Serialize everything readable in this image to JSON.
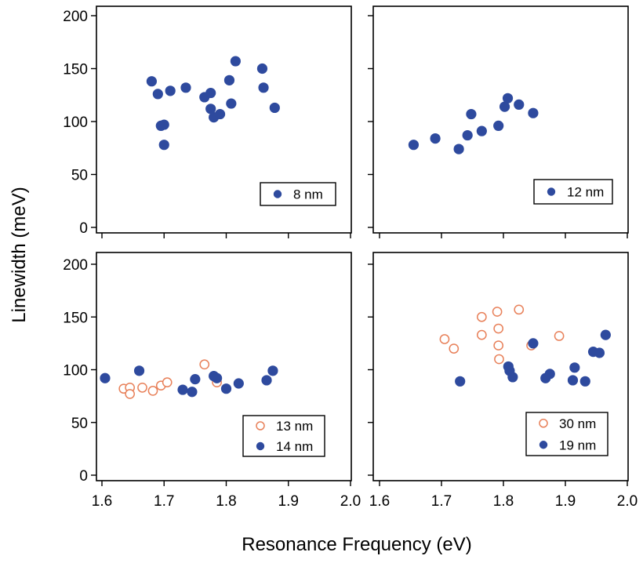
{
  "colors": {
    "filled": "#2E4A9E",
    "open": "#E8815A",
    "axis": "#000000",
    "background": "#ffffff"
  },
  "labels": {
    "ylabel": "Linewidth (meV)",
    "xlabel": "Resonance Frequency (eV)"
  },
  "chart_data": [
    {
      "type": "scatter",
      "panel": "top-left",
      "xlim": [
        1.6,
        2.0
      ],
      "ylim": [
        0,
        200
      ],
      "xticks": [],
      "yticks": [
        "0",
        "50",
        "100",
        "150",
        "200"
      ],
      "legend_position": "bottom-right",
      "series": [
        {
          "name": "8 nm",
          "marker": "filled",
          "x": [
            1.68,
            1.69,
            1.695,
            1.7,
            1.7,
            1.71,
            1.735,
            1.765,
            1.775,
            1.775,
            1.78,
            1.79,
            1.805,
            1.808,
            1.815,
            1.858,
            1.86,
            1.878
          ],
          "y": [
            138,
            126,
            96,
            97,
            78,
            129,
            132,
            123,
            127,
            112,
            104,
            107,
            139,
            117,
            157,
            150,
            132,
            113
          ]
        }
      ]
    },
    {
      "type": "scatter",
      "panel": "top-right",
      "xlim": [
        1.6,
        2.0
      ],
      "ylim": [
        0,
        200
      ],
      "xticks": [],
      "yticks": [],
      "legend_position": "bottom-right",
      "series": [
        {
          "name": "12 nm",
          "marker": "filled",
          "x": [
            1.655,
            1.69,
            1.728,
            1.742,
            1.748,
            1.765,
            1.792,
            1.802,
            1.807,
            1.825,
            1.848
          ],
          "y": [
            78,
            84,
            74,
            87,
            107,
            91,
            96,
            114,
            122,
            116,
            108
          ]
        }
      ]
    },
    {
      "type": "scatter",
      "panel": "bottom-left",
      "xlim": [
        1.6,
        2.0
      ],
      "ylim": [
        0,
        200
      ],
      "xticks": [
        "1.6",
        "1.7",
        "1.8",
        "1.9",
        "2.0"
      ],
      "yticks": [
        "0",
        "50",
        "100",
        "150",
        "200"
      ],
      "legend_position": "bottom-right",
      "series": [
        {
          "name": "13 nm",
          "marker": "open",
          "x": [
            1.635,
            1.645,
            1.645,
            1.665,
            1.682,
            1.695,
            1.705,
            1.765,
            1.785
          ],
          "y": [
            82,
            83,
            77,
            83,
            80,
            85,
            88,
            105,
            88
          ]
        },
        {
          "name": "14 nm",
          "marker": "filled",
          "x": [
            1.605,
            1.66,
            1.73,
            1.745,
            1.75,
            1.78,
            1.785,
            1.8,
            1.82,
            1.865,
            1.875
          ],
          "y": [
            92,
            99,
            81,
            79,
            91,
            94,
            92,
            82,
            87,
            90,
            99
          ]
        }
      ]
    },
    {
      "type": "scatter",
      "panel": "bottom-right",
      "xlim": [
        1.6,
        2.0
      ],
      "ylim": [
        0,
        200
      ],
      "xticks": [
        "1.6",
        "1.7",
        "1.8",
        "1.9",
        "2.0"
      ],
      "yticks": [],
      "legend_position": "bottom-right",
      "series": [
        {
          "name": "30 nm",
          "marker": "open",
          "x": [
            1.705,
            1.72,
            1.765,
            1.765,
            1.79,
            1.792,
            1.792,
            1.793,
            1.825,
            1.845,
            1.89
          ],
          "y": [
            129,
            120,
            150,
            133,
            155,
            139,
            123,
            110,
            157,
            123,
            132
          ]
        },
        {
          "name": "19 nm",
          "marker": "filled",
          "x": [
            1.73,
            1.808,
            1.81,
            1.815,
            1.848,
            1.868,
            1.875,
            1.912,
            1.915,
            1.932,
            1.945,
            1.955,
            1.965
          ],
          "y": [
            89,
            103,
            99,
            93,
            125,
            92,
            96,
            90,
            102,
            89,
            117,
            116,
            133
          ]
        }
      ]
    }
  ]
}
